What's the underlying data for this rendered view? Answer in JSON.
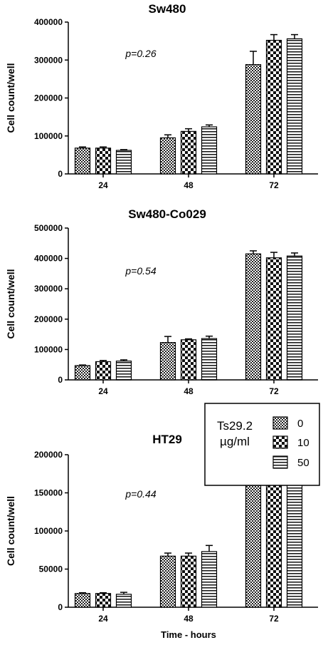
{
  "chart_data": [
    {
      "type": "bar",
      "title": "Sw480",
      "ylabel": "Cell count/well",
      "xlabel": "",
      "annotation": "p=0.26",
      "categories": [
        "24",
        "48",
        "72"
      ],
      "ylim": [
        0,
        400000
      ],
      "yticks": [
        "0",
        "100000",
        "200000",
        "300000",
        "400000"
      ],
      "series": [
        {
          "values": [
            68000,
            95000,
            288000
          ],
          "errors": [
            3000,
            8000,
            35000
          ]
        },
        {
          "values": [
            68000,
            112000,
            352000
          ],
          "errors": [
            3000,
            7000,
            15000
          ]
        },
        {
          "values": [
            62000,
            124000,
            356000
          ],
          "errors": [
            2000,
            5000,
            11000
          ]
        }
      ]
    },
    {
      "type": "bar",
      "title": "Sw480-Co029",
      "ylabel": "Cell count/well",
      "xlabel": "",
      "annotation": "p=0.54",
      "categories": [
        "24",
        "48",
        "72"
      ],
      "ylim": [
        0,
        500000
      ],
      "yticks": [
        "0",
        "100000",
        "200000",
        "300000",
        "400000",
        "500000"
      ],
      "series": [
        {
          "values": [
            47000,
            123000,
            415000
          ],
          "errors": [
            2000,
            20000,
            10000
          ]
        },
        {
          "values": [
            60000,
            132000,
            402000
          ],
          "errors": [
            4000,
            3000,
            18000
          ]
        },
        {
          "values": [
            62000,
            136000,
            408000
          ],
          "errors": [
            4000,
            8000,
            10000
          ]
        }
      ]
    },
    {
      "type": "bar",
      "title": "HT29",
      "ylabel": "Cell count/well",
      "xlabel": "Time - hours",
      "annotation": "p=0.44",
      "categories": [
        "24",
        "48",
        "72"
      ],
      "ylim": [
        0,
        200000
      ],
      "yticks": [
        "0",
        "50000",
        "100000",
        "150000",
        "200000"
      ],
      "series": [
        {
          "values": [
            18000,
            67000,
            175000
          ],
          "errors": [
            1000,
            4000,
            7000
          ]
        },
        {
          "values": [
            18000,
            67000,
            174000
          ],
          "errors": [
            1000,
            4000,
            6000
          ]
        },
        {
          "values": [
            17000,
            73000,
            175000
          ],
          "errors": [
            2500,
            8000,
            7000
          ]
        }
      ]
    }
  ],
  "legend": {
    "title_line1": "Ts29.2",
    "title_line2": "µg/ml",
    "entries": [
      "0",
      "10",
      "50"
    ],
    "placement": "right, overlapping top of third panel"
  }
}
